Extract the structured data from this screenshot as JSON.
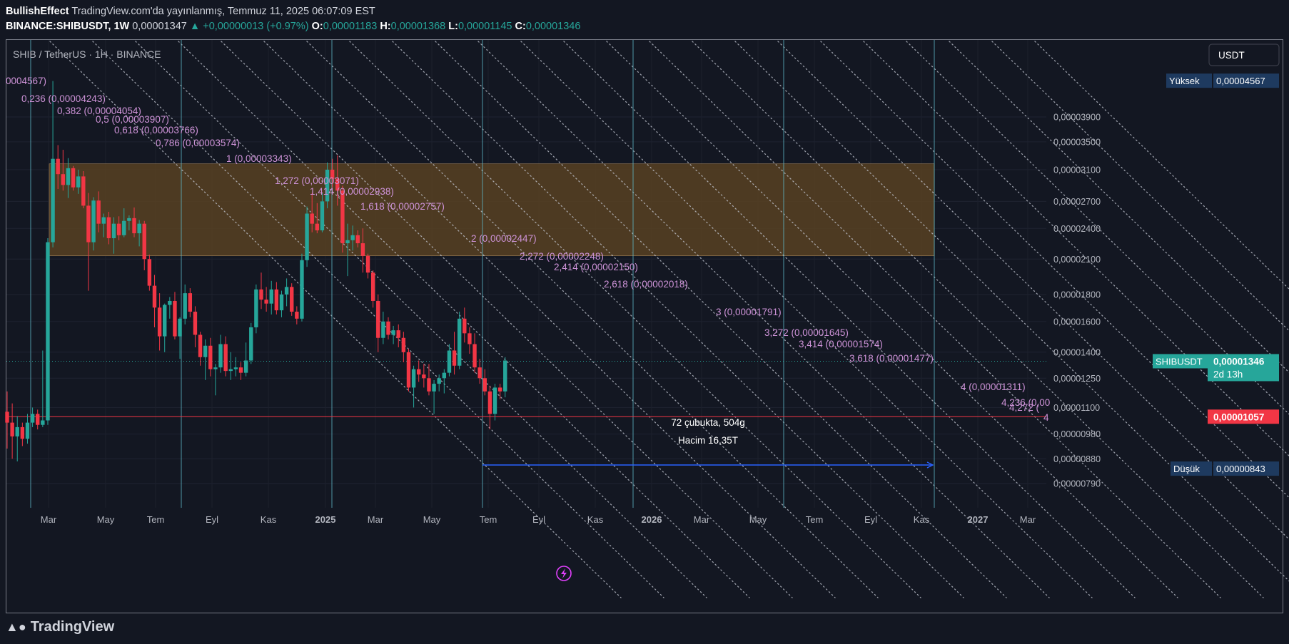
{
  "header": {
    "author": "BullishEffect",
    "published": "TradingView.com'da yayınlanmış, Temmuz 11, 2025 06:07:09 EST",
    "symbol": "BINANCE:SHIBUSDT, 1W",
    "last": "0,00001347",
    "change": "▲ +0,00000013 (+0.97%)",
    "o_label": "O:",
    "o": "0,00001183",
    "h_label": "H:",
    "h": "0,00001368",
    "l_label": "L:",
    "l": "0,00001145",
    "c_label": "C:",
    "c": "0,00001346"
  },
  "footer": {
    "brand": "TradingView"
  },
  "colors": {
    "bg": "#131722",
    "up": "#26a69a",
    "down": "#f23645",
    "zone": "#5e4422",
    "fib": "#ce93d8",
    "vline": "#5fb7c6",
    "arrow": "#2962ff",
    "axis_text": "#b2b5be"
  },
  "chart_data": {
    "type": "candlestick",
    "title": "SHIB / TetherUS · 1H · BINANCE",
    "currency": "USDT",
    "x_ticks": [
      "Mar",
      "May",
      "Tem",
      "Eyl",
      "Kas",
      "2025",
      "Mar",
      "May",
      "Tem",
      "Eyl",
      "Kas",
      "2026",
      "Mar",
      "May",
      "Tem",
      "Eyl",
      "Kas",
      "2027",
      "Mar"
    ],
    "y_ticks": [
      "0,00003900",
      "0,00003500",
      "0,00003100",
      "0,00002700",
      "0,00002400",
      "0,00002100",
      "0,00001800",
      "0,00001600",
      "0,00001400",
      "0,00001250",
      "0,00001100",
      "0,00000980",
      "0,00000880",
      "0,00000790"
    ],
    "y_scale": "log",
    "price_labels": {
      "high_label": "Yüksek",
      "high": "0,00004567",
      "low_label": "Düşük",
      "low": "0,00000843",
      "current_symbol": "SHIBUSDT",
      "current": "0,00001346",
      "countdown": "2d 13h",
      "red_line": "0,00001057"
    },
    "fib_levels": [
      {
        "text": "0004567)"
      },
      {
        "text": "0,236 (0,00004243)"
      },
      {
        "text": "0,382 (0,00004054)"
      },
      {
        "text": "0,5 (0,00003907)"
      },
      {
        "text": "0,618 (0,00003766)"
      },
      {
        "text": "0,786 (0,00003574)"
      },
      {
        "text": "1 (0,00003343)"
      },
      {
        "text": "1,272 (0,00003071)"
      },
      {
        "text": "1,414 (0,00002938)"
      },
      {
        "text": "1,618 (0,00002757)"
      },
      {
        "text": "2 (0,00002447)"
      },
      {
        "text": "2,272 (0,00002248)"
      },
      {
        "text": "2,414 (0,00002150)"
      },
      {
        "text": "2,618 (0,00002018)"
      },
      {
        "text": "3 (0,00001791)"
      },
      {
        "text": "3,272 (0,00001645)"
      },
      {
        "text": "3,414 (0,00001574)"
      },
      {
        "text": "3,618 (0,00001477)"
      },
      {
        "text": "4 (0,00001311)"
      },
      {
        "text": "4,236 (0,00"
      },
      {
        "text": "4,272 ("
      },
      {
        "text": "4"
      }
    ],
    "zone": {
      "top": 3.18e-05,
      "bottom": 2.13e-05
    },
    "measure": {
      "bars": "72 çubukta, 504g",
      "volume": "Hacim 16,35T"
    },
    "candles": [
      {
        "o": 1.08e-05,
        "h": 1.18e-05,
        "l": 9.2e-06,
        "c": 1.03e-05
      },
      {
        "o": 1.03e-05,
        "h": 1.12e-05,
        "l": 8.8e-06,
        "c": 9.7e-06
      },
      {
        "o": 9.7e-06,
        "h": 1.06e-05,
        "l": 8.7e-06,
        "c": 1.01e-05
      },
      {
        "o": 1.01e-05,
        "h": 1.03e-05,
        "l": 9.3e-06,
        "c": 9.6e-06
      },
      {
        "o": 9.6e-06,
        "h": 1.07e-05,
        "l": 9.4e-06,
        "c": 1.03e-05
      },
      {
        "o": 1.03e-05,
        "h": 1.1e-05,
        "l": 1.01e-05,
        "c": 1.07e-05
      },
      {
        "o": 1.07e-05,
        "h": 1.09e-05,
        "l": 1e-05,
        "c": 1.02e-05
      },
      {
        "o": 1.02e-05,
        "h": 1.41e-05,
        "l": 1.01e-05,
        "c": 1.04e-05
      },
      {
        "o": 1.04e-05,
        "h": 2.3e-05,
        "l": 1.02e-05,
        "c": 2.26e-05
      },
      {
        "o": 2.26e-05,
        "h": 4.56e-05,
        "l": 2.21e-05,
        "c": 3.25e-05
      },
      {
        "o": 3.25e-05,
        "h": 3.45e-05,
        "l": 2.85e-05,
        "c": 3.04e-05
      },
      {
        "o": 3.04e-05,
        "h": 3.38e-05,
        "l": 2.83e-05,
        "c": 2.9e-05
      },
      {
        "o": 2.9e-05,
        "h": 3.26e-05,
        "l": 2.74e-05,
        "c": 3.12e-05
      },
      {
        "o": 3.12e-05,
        "h": 3.15e-05,
        "l": 2.83e-05,
        "c": 2.87e-05
      },
      {
        "o": 2.87e-05,
        "h": 3.1e-05,
        "l": 2.79e-05,
        "c": 3.01e-05
      },
      {
        "o": 3.01e-05,
        "h": 3.08e-05,
        "l": 2.62e-05,
        "c": 2.65e-05
      },
      {
        "o": 2.65e-05,
        "h": 2.8e-05,
        "l": 1.83e-05,
        "c": 2.26e-05
      },
      {
        "o": 2.26e-05,
        "h": 2.75e-05,
        "l": 2.18e-05,
        "c": 2.71e-05
      },
      {
        "o": 2.71e-05,
        "h": 2.82e-05,
        "l": 2.36e-05,
        "c": 2.45e-05
      },
      {
        "o": 2.45e-05,
        "h": 2.56e-05,
        "l": 2.31e-05,
        "c": 2.52e-05
      },
      {
        "o": 2.52e-05,
        "h": 2.58e-05,
        "l": 2.24e-05,
        "c": 2.3e-05
      },
      {
        "o": 2.3e-05,
        "h": 2.52e-05,
        "l": 2.15e-05,
        "c": 2.45e-05
      },
      {
        "o": 2.45e-05,
        "h": 2.53e-05,
        "l": 2.28e-05,
        "c": 2.33e-05
      },
      {
        "o": 2.33e-05,
        "h": 2.62e-05,
        "l": 2.31e-05,
        "c": 2.48e-05
      },
      {
        "o": 2.48e-05,
        "h": 2.54e-05,
        "l": 2.38e-05,
        "c": 2.51e-05
      },
      {
        "o": 2.51e-05,
        "h": 2.63e-05,
        "l": 2.31e-05,
        "c": 2.35e-05
      },
      {
        "o": 2.35e-05,
        "h": 2.49e-05,
        "l": 2.22e-05,
        "c": 2.45e-05
      },
      {
        "o": 2.45e-05,
        "h": 2.48e-05,
        "l": 2e-05,
        "c": 2.1e-05
      },
      {
        "o": 2.1e-05,
        "h": 2.14e-05,
        "l": 1.83e-05,
        "c": 1.87e-05
      },
      {
        "o": 1.87e-05,
        "h": 1.96e-05,
        "l": 1.56e-05,
        "c": 1.7e-05
      },
      {
        "o": 1.7e-05,
        "h": 1.81e-05,
        "l": 1.41e-05,
        "c": 1.5e-05
      },
      {
        "o": 1.5e-05,
        "h": 1.73e-05,
        "l": 1.4e-05,
        "c": 1.72e-05
      },
      {
        "o": 1.72e-05,
        "h": 1.78e-05,
        "l": 1.62e-05,
        "c": 1.75e-05
      },
      {
        "o": 1.75e-05,
        "h": 1.82e-05,
        "l": 1.48e-05,
        "c": 1.5e-05
      },
      {
        "o": 1.5e-05,
        "h": 1.63e-05,
        "l": 1.36e-05,
        "c": 1.62e-05
      },
      {
        "o": 1.62e-05,
        "h": 1.88e-05,
        "l": 1.58e-05,
        "c": 1.81e-05
      },
      {
        "o": 1.81e-05,
        "h": 1.85e-05,
        "l": 1.63e-05,
        "c": 1.67e-05
      },
      {
        "o": 1.67e-05,
        "h": 1.71e-05,
        "l": 1.43e-05,
        "c": 1.51e-05
      },
      {
        "o": 1.51e-05,
        "h": 1.53e-05,
        "l": 1.32e-05,
        "c": 1.37e-05
      },
      {
        "o": 1.37e-05,
        "h": 1.48e-05,
        "l": 1.24e-05,
        "c": 1.44e-05
      },
      {
        "o": 1.44e-05,
        "h": 1.49e-05,
        "l": 1.26e-05,
        "c": 1.3e-05
      },
      {
        "o": 1.3e-05,
        "h": 1.33e-05,
        "l": 1.16e-05,
        "c": 1.31e-05
      },
      {
        "o": 1.31e-05,
        "h": 1.51e-05,
        "l": 1.28e-05,
        "c": 1.45e-05
      },
      {
        "o": 1.45e-05,
        "h": 1.5e-05,
        "l": 1.26e-05,
        "c": 1.29e-05
      },
      {
        "o": 1.29e-05,
        "h": 1.4e-05,
        "l": 1.24e-05,
        "c": 1.3e-05
      },
      {
        "o": 1.3e-05,
        "h": 1.37e-05,
        "l": 1.26e-05,
        "c": 1.31e-05
      },
      {
        "o": 1.31e-05,
        "h": 1.34e-05,
        "l": 1.24e-05,
        "c": 1.28e-05
      },
      {
        "o": 1.28e-05,
        "h": 1.46e-05,
        "l": 1.26e-05,
        "c": 1.35e-05
      },
      {
        "o": 1.35e-05,
        "h": 1.59e-05,
        "l": 1.33e-05,
        "c": 1.56e-05
      },
      {
        "o": 1.56e-05,
        "h": 1.88e-05,
        "l": 1.52e-05,
        "c": 1.84e-05
      },
      {
        "o": 1.84e-05,
        "h": 1.98e-05,
        "l": 1.69e-05,
        "c": 1.76e-05
      },
      {
        "o": 1.76e-05,
        "h": 1.86e-05,
        "l": 1.67e-05,
        "c": 1.73e-05
      },
      {
        "o": 1.73e-05,
        "h": 1.91e-05,
        "l": 1.65e-05,
        "c": 1.84e-05
      },
      {
        "o": 1.84e-05,
        "h": 1.9e-05,
        "l": 1.65e-05,
        "c": 1.68e-05
      },
      {
        "o": 1.68e-05,
        "h": 1.83e-05,
        "l": 1.63e-05,
        "c": 1.8e-05
      },
      {
        "o": 1.8e-05,
        "h": 1.93e-05,
        "l": 1.71e-05,
        "c": 1.86e-05
      },
      {
        "o": 1.86e-05,
        "h": 1.89e-05,
        "l": 1.64e-05,
        "c": 1.67e-05
      },
      {
        "o": 1.67e-05,
        "h": 1.71e-05,
        "l": 1.58e-05,
        "c": 1.62e-05
      },
      {
        "o": 1.62e-05,
        "h": 2.15e-05,
        "l": 1.6e-05,
        "c": 2.09e-05
      },
      {
        "o": 2.09e-05,
        "h": 2.64e-05,
        "l": 2.03e-05,
        "c": 2.56e-05
      },
      {
        "o": 2.56e-05,
        "h": 2.8e-05,
        "l": 2.36e-05,
        "c": 2.45e-05
      },
      {
        "o": 2.45e-05,
        "h": 2.68e-05,
        "l": 2.35e-05,
        "c": 2.38e-05
      },
      {
        "o": 2.38e-05,
        "h": 2.8e-05,
        "l": 2.36e-05,
        "c": 2.7e-05
      },
      {
        "o": 2.7e-05,
        "h": 3.2e-05,
        "l": 2.62e-05,
        "c": 3.1e-05
      },
      {
        "o": 3.1e-05,
        "h": 3.25e-05,
        "l": 2.87e-05,
        "c": 2.98e-05
      },
      {
        "o": 2.98e-05,
        "h": 3.3e-05,
        "l": 2.65e-05,
        "c": 2.83e-05
      },
      {
        "o": 2.83e-05,
        "h": 2.89e-05,
        "l": 2.16e-05,
        "c": 2.25e-05
      },
      {
        "o": 2.25e-05,
        "h": 2.45e-05,
        "l": 1.95e-05,
        "c": 2.28e-05
      },
      {
        "o": 2.28e-05,
        "h": 2.43e-05,
        "l": 2.18e-05,
        "c": 2.33e-05
      },
      {
        "o": 2.33e-05,
        "h": 2.38e-05,
        "l": 2.21e-05,
        "c": 2.25e-05
      },
      {
        "o": 2.25e-05,
        "h": 2.4e-05,
        "l": 1.98e-05,
        "c": 2.13e-05
      },
      {
        "o": 2.13e-05,
        "h": 2.15e-05,
        "l": 1.93e-05,
        "c": 1.98e-05
      },
      {
        "o": 1.98e-05,
        "h": 2e-05,
        "l": 1.7e-05,
        "c": 1.75e-05
      },
      {
        "o": 1.75e-05,
        "h": 1.8e-05,
        "l": 1.4e-05,
        "c": 1.49e-05
      },
      {
        "o": 1.49e-05,
        "h": 1.67e-05,
        "l": 1.45e-05,
        "c": 1.6e-05
      },
      {
        "o": 1.6e-05,
        "h": 1.63e-05,
        "l": 1.48e-05,
        "c": 1.51e-05
      },
      {
        "o": 1.51e-05,
        "h": 1.57e-05,
        "l": 1.45e-05,
        "c": 1.54e-05
      },
      {
        "o": 1.54e-05,
        "h": 1.58e-05,
        "l": 1.43e-05,
        "c": 1.49e-05
      },
      {
        "o": 1.49e-05,
        "h": 1.53e-05,
        "l": 1.34e-05,
        "c": 1.4e-05
      },
      {
        "o": 1.4e-05,
        "h": 1.42e-05,
        "l": 1.18e-05,
        "c": 1.2e-05
      },
      {
        "o": 1.2e-05,
        "h": 1.32e-05,
        "l": 1.1e-05,
        "c": 1.3e-05
      },
      {
        "o": 1.3e-05,
        "h": 1.35e-05,
        "l": 1.23e-05,
        "c": 1.27e-05
      },
      {
        "o": 1.27e-05,
        "h": 1.33e-05,
        "l": 1.2e-05,
        "c": 1.25e-05
      },
      {
        "o": 1.25e-05,
        "h": 1.33e-05,
        "l": 1.16e-05,
        "c": 1.18e-05
      },
      {
        "o": 1.18e-05,
        "h": 1.24e-05,
        "l": 1.07e-05,
        "c": 1.22e-05
      },
      {
        "o": 1.22e-05,
        "h": 1.27e-05,
        "l": 1.18e-05,
        "c": 1.25e-05
      },
      {
        "o": 1.25e-05,
        "h": 1.3e-05,
        "l": 1.17e-05,
        "c": 1.28e-05
      },
      {
        "o": 1.28e-05,
        "h": 1.45e-05,
        "l": 1.26e-05,
        "c": 1.41e-05
      },
      {
        "o": 1.41e-05,
        "h": 1.53e-05,
        "l": 1.27e-05,
        "c": 1.32e-05
      },
      {
        "o": 1.32e-05,
        "h": 1.67e-05,
        "l": 1.3e-05,
        "c": 1.62e-05
      },
      {
        "o": 1.62e-05,
        "h": 1.7e-05,
        "l": 1.46e-05,
        "c": 1.52e-05
      },
      {
        "o": 1.52e-05,
        "h": 1.56e-05,
        "l": 1.39e-05,
        "c": 1.45e-05
      },
      {
        "o": 1.45e-05,
        "h": 1.52e-05,
        "l": 1.28e-05,
        "c": 1.31e-05
      },
      {
        "o": 1.31e-05,
        "h": 1.36e-05,
        "l": 1.22e-05,
        "c": 1.25e-05
      },
      {
        "o": 1.25e-05,
        "h": 1.3e-05,
        "l": 1.16e-05,
        "c": 1.18e-05
      },
      {
        "o": 1.18e-05,
        "h": 1.21e-05,
        "l": 1e-05,
        "c": 1.07e-05
      },
      {
        "o": 1.07e-05,
        "h": 1.22e-05,
        "l": 1.04e-05,
        "c": 1.2e-05
      },
      {
        "o": 1.2e-05,
        "h": 1.22e-05,
        "l": 1.14e-05,
        "c": 1.18e-05
      },
      {
        "o": 1.18e-05,
        "h": 1.37e-05,
        "l": 1.15e-05,
        "c": 1.35e-05
      }
    ]
  }
}
